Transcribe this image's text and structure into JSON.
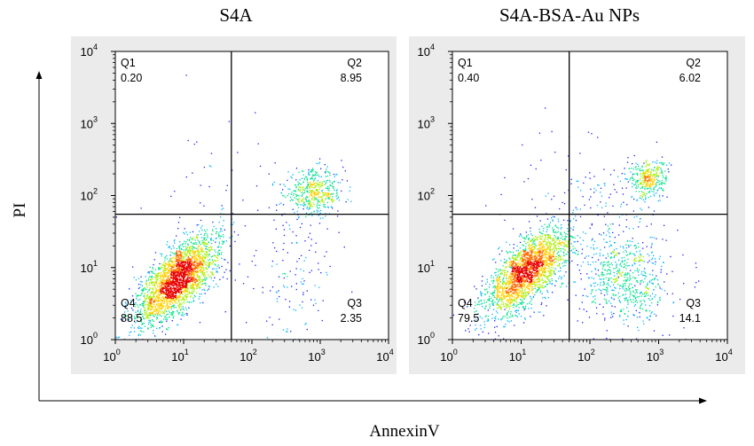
{
  "chart_data": {
    "type": "scatter",
    "x_label": "AnnexinV",
    "y_label": "PI",
    "x_scale": "log",
    "y_scale": "log",
    "x_range": [
      1,
      10000
    ],
    "y_range": [
      1,
      10000
    ],
    "x_ticks": [
      "10",
      "10",
      "10",
      "10",
      "10"
    ],
    "x_tick_exponents": [
      "0",
      "1",
      "2",
      "3",
      "4"
    ],
    "y_ticks": [
      "10",
      "10",
      "10",
      "10",
      "10"
    ],
    "y_tick_exponents": [
      "0",
      "1",
      "2",
      "3",
      "4"
    ],
    "gate": {
      "x": 50,
      "y": 55
    },
    "density_colors": [
      "#1a1aff",
      "#00b4ff",
      "#00e08a",
      "#a8f000",
      "#ffd000",
      "#ff6a00",
      "#e80000"
    ],
    "panels": [
      {
        "title": "S4A",
        "quadrants": [
          {
            "name": "Q1",
            "value": "0.20"
          },
          {
            "name": "Q2",
            "value": "8.95"
          },
          {
            "name": "Q3",
            "value": "2.35"
          },
          {
            "name": "Q4",
            "value": "88.5"
          }
        ],
        "populations": [
          {
            "kind": "diag",
            "count": 2600,
            "cx": 8,
            "cy": 7,
            "s_major": 0.38,
            "s_minor": 0.17
          },
          {
            "kind": "blob",
            "count": 480,
            "cx": 800,
            "cy": 110,
            "sx": 0.22,
            "sy": 0.16
          },
          {
            "kind": "blob",
            "count": 140,
            "cx": 350,
            "cy": 8,
            "sx": 0.35,
            "sy": 0.45
          },
          {
            "kind": "blob",
            "count": 40,
            "cx": 30,
            "cy": 150,
            "sx": 0.5,
            "sy": 0.5
          }
        ]
      },
      {
        "title": "S4A-BSA-Au NPs",
        "quadrants": [
          {
            "name": "Q1",
            "value": "0.40"
          },
          {
            "name": "Q2",
            "value": "6.02"
          },
          {
            "name": "Q3",
            "value": "14.1"
          },
          {
            "name": "Q4",
            "value": "79.5"
          }
        ],
        "populations": [
          {
            "kind": "diag",
            "count": 2300,
            "cx": 12,
            "cy": 9,
            "s_major": 0.38,
            "s_minor": 0.17
          },
          {
            "kind": "blob",
            "count": 320,
            "cx": 700,
            "cy": 170,
            "sx": 0.14,
            "sy": 0.13
          },
          {
            "kind": "blob",
            "count": 650,
            "cx": 330,
            "cy": 7,
            "sx": 0.32,
            "sy": 0.32
          },
          {
            "kind": "blob",
            "count": 120,
            "cx": 250,
            "cy": 60,
            "sx": 0.35,
            "sy": 0.35
          },
          {
            "kind": "blob",
            "count": 40,
            "cx": 30,
            "cy": 150,
            "sx": 0.5,
            "sy": 0.5
          }
        ]
      }
    ]
  }
}
